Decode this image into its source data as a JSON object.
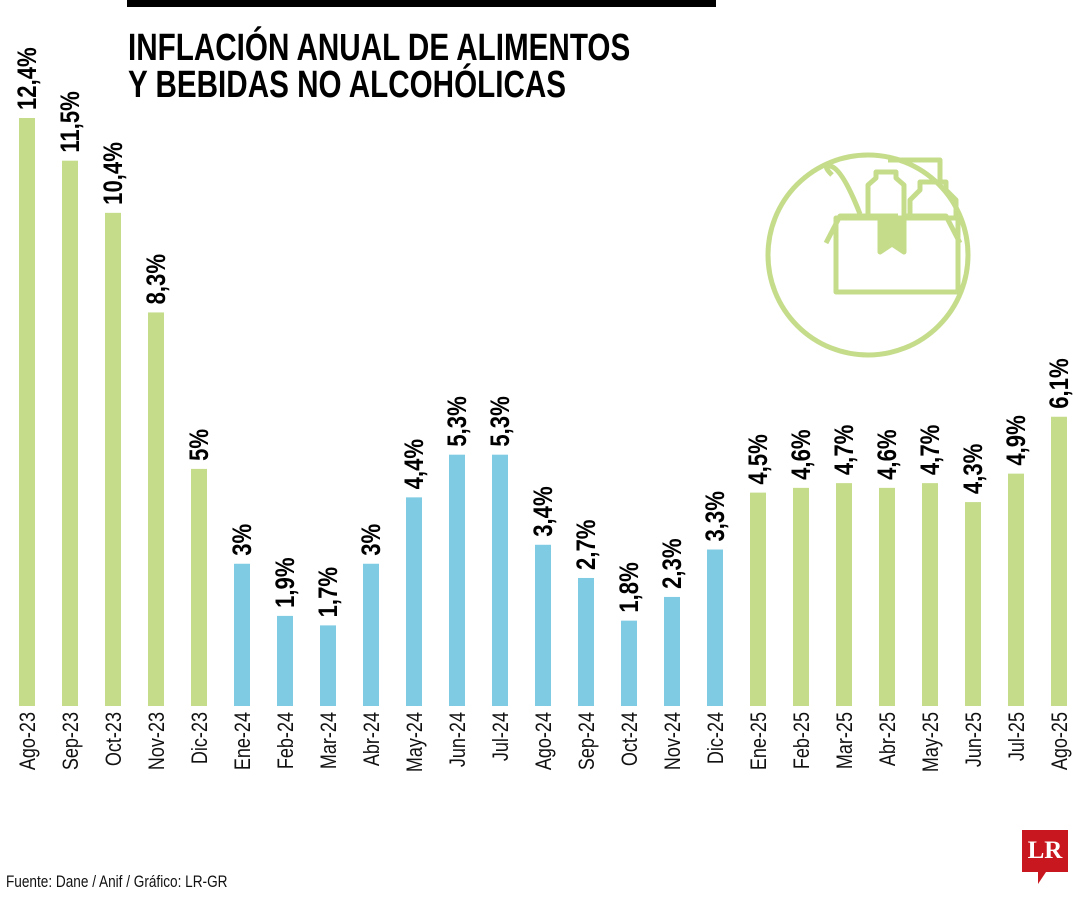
{
  "title_lines": [
    "INFLACIÓN ANUAL DE ALIMENTOS",
    "Y BEBIDAS NO ALCOHÓLICAS"
  ],
  "source": "Fuente: Dane / Anif / Gráfico: LR-GR",
  "logo": "LR",
  "icon": "grocery-bag-icon",
  "colors": {
    "green": "#c5dc8b",
    "blue": "#80cbe4",
    "text": "#000000"
  },
  "chart_data": {
    "type": "bar",
    "title": "INFLACIÓN ANUAL DE ALIMENTOS Y BEBIDAS NO ALCOHÓLICAS",
    "xlabel": "",
    "ylabel": "",
    "ylim": [
      0,
      12.4
    ],
    "grid": false,
    "categories": [
      "Ago-23",
      "Sep-23",
      "Oct-23",
      "Nov-23",
      "Dic-23",
      "Ene-24",
      "Feb-24",
      "Mar-24",
      "Abr-24",
      "May-24",
      "Jun-24",
      "Jul-24",
      "Ago-24",
      "Sep-24",
      "Oct-24",
      "Nov-24",
      "Dic-24",
      "Ene-25",
      "Feb-25",
      "Mar-25",
      "Abr-25",
      "May-25",
      "Jun-25",
      "Jul-25",
      "Ago-25"
    ],
    "values": [
      12.4,
      11.5,
      10.4,
      8.3,
      5,
      3,
      1.9,
      1.7,
      3,
      4.4,
      5.3,
      5.3,
      3.4,
      2.7,
      1.8,
      2.3,
      3.3,
      4.5,
      4.6,
      4.7,
      4.6,
      4.7,
      4.3,
      4.9,
      6.1
    ],
    "labels": [
      "12,4%",
      "11,5%",
      "10,4%",
      "8,3%",
      "5%",
      "3%",
      "1,9%",
      "1,7%",
      "3%",
      "4,4%",
      "5,3%",
      "5,3%",
      "3,4%",
      "2,7%",
      "1,8%",
      "2,3%",
      "3,3%",
      "4,5%",
      "4,6%",
      "4,7%",
      "4,6%",
      "4,7%",
      "4,3%",
      "4,9%",
      "6,1%"
    ],
    "bar_colors": [
      "green",
      "green",
      "green",
      "green",
      "green",
      "blue",
      "blue",
      "blue",
      "blue",
      "blue",
      "blue",
      "blue",
      "blue",
      "blue",
      "blue",
      "blue",
      "blue",
      "green",
      "green",
      "green",
      "green",
      "green",
      "green",
      "green",
      "green"
    ]
  }
}
